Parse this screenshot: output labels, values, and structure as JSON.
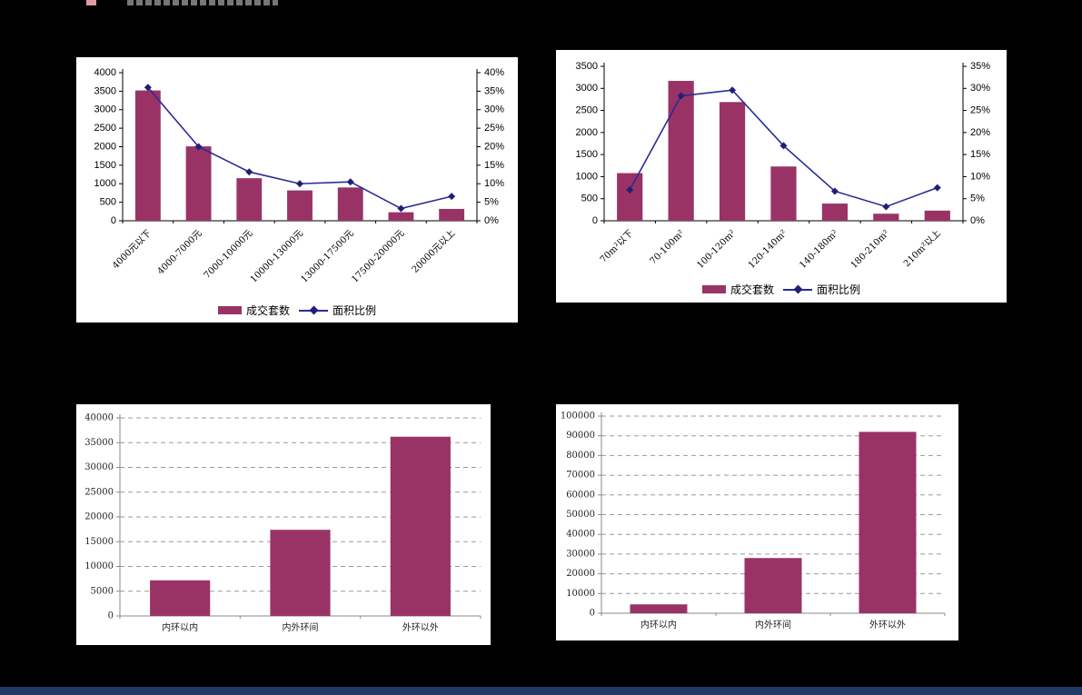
{
  "page": {
    "background_color": "#000000",
    "footer_bar_color": "#1f3864",
    "header_fragment_accent_color": "#e29aa4",
    "header_fragment_text_color": "#8c8c8c"
  },
  "chart_data": [
    {
      "type": "bar-line",
      "title": "",
      "categories": [
        "4000元以下",
        "4000-7000元",
        "7000-10000元",
        "10000-13000元",
        "13000-17500元",
        "17500-20000元",
        "20000元以上"
      ],
      "bar_series": {
        "name": "成交套数",
        "values": [
          3520,
          2010,
          1150,
          820,
          900,
          230,
          320
        ],
        "color": "#993366"
      },
      "line_series": {
        "name": "面积比例",
        "values": [
          36,
          20,
          13.2,
          10,
          10.5,
          3.3,
          6.6
        ],
        "color": "#2a2a99",
        "marker_color": "#1f1f75"
      },
      "left_axis": {
        "min": 0,
        "max": 4000,
        "step": 500
      },
      "right_axis": {
        "min": 0,
        "max": 40,
        "step": 5,
        "suffix": "%"
      },
      "legend_position": "bottom",
      "grid": false
    },
    {
      "type": "bar-line",
      "title": "",
      "categories": [
        "70m²以下",
        "70-100m²",
        "100-120m²",
        "120-140m²",
        "140-180m²",
        "180-210m²",
        "210m²以上"
      ],
      "bar_series": {
        "name": "成交套数",
        "values": [
          1080,
          3170,
          2690,
          1230,
          390,
          160,
          230
        ],
        "color": "#993366"
      },
      "line_series": {
        "name": "面积比例",
        "values": [
          7,
          28.3,
          29.6,
          17,
          6.7,
          3.2,
          7.5
        ],
        "color": "#2a2a99",
        "marker_color": "#1f1f75"
      },
      "left_axis": {
        "min": 0,
        "max": 3500,
        "step": 500
      },
      "right_axis": {
        "min": 0,
        "max": 35,
        "step": 5,
        "suffix": "%"
      },
      "legend_position": "bottom",
      "grid": false
    },
    {
      "type": "bar",
      "title": "",
      "categories": [
        "内环以内",
        "内外环间",
        "外环以外"
      ],
      "bar_series": {
        "name": "",
        "values": [
          7200,
          17400,
          36200
        ],
        "color": "#993366"
      },
      "left_axis": {
        "min": 0,
        "max": 40000,
        "step": 5000
      },
      "legend_position": "none",
      "grid": true
    },
    {
      "type": "bar",
      "title": "",
      "categories": [
        "内环以内",
        "内外环间",
        "外环以外"
      ],
      "bar_series": {
        "name": "",
        "values": [
          4500,
          28000,
          92000
        ],
        "color": "#993366"
      },
      "left_axis": {
        "min": 0,
        "max": 100000,
        "step": 10000
      },
      "legend_position": "none",
      "grid": true
    }
  ]
}
